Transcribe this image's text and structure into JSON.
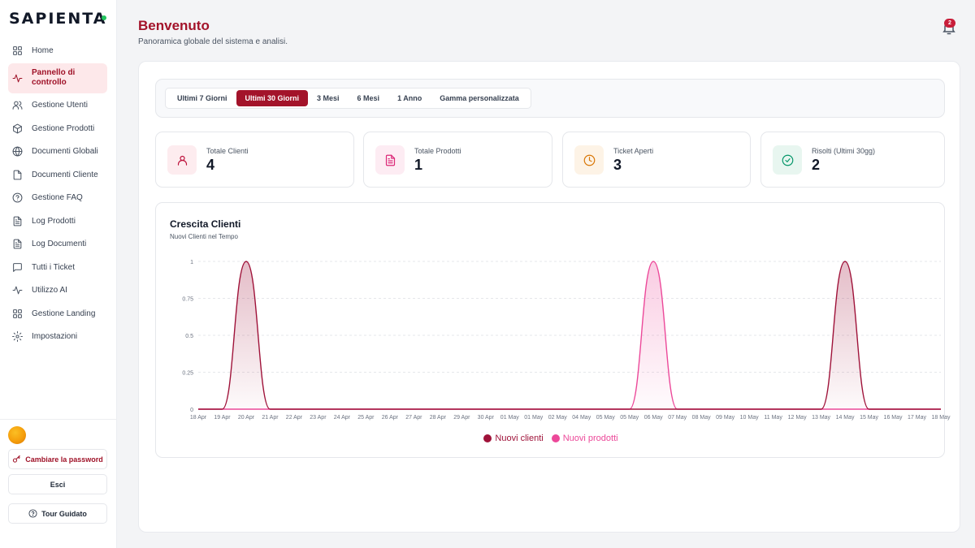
{
  "app": {
    "logo_text": "SAPIENTA"
  },
  "sidebar": {
    "items": [
      {
        "label": "Home",
        "icon": "grid-icon"
      },
      {
        "label": "Pannello di controllo",
        "icon": "activity-icon",
        "active": true
      },
      {
        "label": "Gestione Utenti",
        "icon": "users-icon"
      },
      {
        "label": "Gestione Prodotti",
        "icon": "box-icon"
      },
      {
        "label": "Documenti Globali",
        "icon": "globe-icon"
      },
      {
        "label": "Documenti Cliente",
        "icon": "file-icon"
      },
      {
        "label": "Gestione FAQ",
        "icon": "help-circle-icon"
      },
      {
        "label": "Log Prodotti",
        "icon": "file-text-icon"
      },
      {
        "label": "Log Documenti",
        "icon": "file-text-icon"
      },
      {
        "label": "Tutti i Ticket",
        "icon": "message-square-icon"
      },
      {
        "label": "Utilizzo AI",
        "icon": "activity-icon"
      },
      {
        "label": "Gestione Landing",
        "icon": "grid-icon"
      },
      {
        "label": "Impostazioni",
        "icon": "gear-icon"
      }
    ],
    "change_password_label": "Cambiare la password",
    "logout_label": "Esci",
    "tour_label": "Tour Guidato"
  },
  "header": {
    "title": "Benvenuto",
    "subtitle": "Panoramica globale del sistema e analisi.",
    "notification_count": "2"
  },
  "ranges": {
    "options": [
      "Ultimi 7 Giorni",
      "Ultimi 30 Giorni",
      "3 Mesi",
      "6 Mesi",
      "1 Anno",
      "Gamma personalizzata"
    ],
    "selected": "Ultimi 30 Giorni"
  },
  "stats": [
    {
      "label": "Totale Clienti",
      "value": "4",
      "icon": "user-icon",
      "color": "#be123c",
      "bg": "#fdecef"
    },
    {
      "label": "Totale Prodotti",
      "value": "1",
      "icon": "file-text-icon",
      "color": "#db2777",
      "bg": "#fdecf3"
    },
    {
      "label": "Ticket Aperti",
      "value": "3",
      "icon": "clock-icon",
      "color": "#d97706",
      "bg": "#fdf3e6"
    },
    {
      "label": "Risolti (Ultimi 30gg)",
      "value": "2",
      "icon": "check-circle-icon",
      "color": "#059669",
      "bg": "#e8f6f0"
    }
  ],
  "colors": {
    "accent": "#a3132a",
    "clients": "#9f1239",
    "products": "#ec4899"
  },
  "chart": {
    "title": "Crescita Clienti",
    "subtitle": "Nuovi Clienti nel Tempo"
  },
  "chart_data": {
    "type": "area",
    "title": "Crescita Clienti",
    "subtitle": "Nuovi Clienti nel Tempo",
    "x": [
      "18 Apr",
      "19 Apr",
      "20 Apr",
      "21 Apr",
      "22 Apr",
      "23 Apr",
      "24 Apr",
      "25 Apr",
      "26 Apr",
      "27 Apr",
      "28 Apr",
      "29 Apr",
      "30 Apr",
      "01 May",
      "01 May",
      "02 May",
      "04 May",
      "05 May",
      "05 May",
      "06 May",
      "07 May",
      "08 May",
      "09 May",
      "10 May",
      "11 May",
      "12 May",
      "13 May",
      "14 May",
      "15 May",
      "16 May",
      "17 May",
      "18 May"
    ],
    "series": [
      {
        "name": "Nuovi clienti",
        "values": [
          0,
          0,
          1,
          0,
          0,
          0,
          0,
          0,
          0,
          0,
          0,
          0,
          0,
          0,
          0,
          0,
          0,
          0,
          0,
          0,
          0,
          0,
          0,
          0,
          0,
          0,
          0,
          1,
          0,
          0,
          0,
          0
        ]
      },
      {
        "name": "Nuovi prodotti",
        "values": [
          0,
          0,
          0,
          0,
          0,
          0,
          0,
          0,
          0,
          0,
          0,
          0,
          0,
          0,
          0,
          0,
          0,
          0,
          0,
          1,
          0,
          0,
          0,
          0,
          0,
          0,
          0,
          0,
          0,
          0,
          0,
          0
        ]
      }
    ],
    "y_ticks": [
      "0",
      "0.25",
      "0.5",
      "0.75",
      "1"
    ],
    "ylim": [
      0,
      1
    ],
    "grid": true,
    "legend": "bottom-center"
  }
}
